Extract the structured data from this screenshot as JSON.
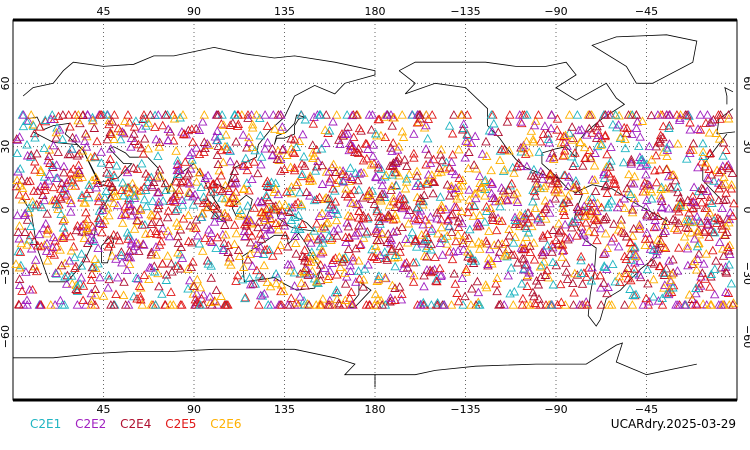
{
  "map": {
    "projection": "equirectangular",
    "center_longitude": 180,
    "lat_range": [
      -90,
      90
    ],
    "lon_ticks_top": [
      "45",
      "90",
      "135",
      "180",
      "−135",
      "−90",
      "−45"
    ],
    "lon_ticks_bottom": [
      "45",
      "90",
      "135",
      "180",
      "−135",
      "−90",
      "−45"
    ],
    "lat_ticks_left": [
      "60",
      "30",
      "0",
      "−30",
      "−60"
    ],
    "lat_ticks_right": [
      "60",
      "30",
      "0",
      "−30",
      "−60"
    ],
    "gridlines": true,
    "gridline_style": "dotted",
    "coastlines": true
  },
  "legend": {
    "items": [
      {
        "label": "C2E1",
        "color": "#1fb5c2"
      },
      {
        "label": "C2E2",
        "color": "#a020c0"
      },
      {
        "label": "C2E4",
        "color": "#b01030"
      },
      {
        "label": "C2E5",
        "color": "#e01818"
      },
      {
        "label": "C2E6",
        "color": "#ffb000"
      }
    ]
  },
  "stamp": "UCARdry.2025-03-29",
  "observations": {
    "symbol": "triangle",
    "lat_band": [
      -45,
      45
    ],
    "coverage": "global longitudes",
    "density": "very dense"
  }
}
